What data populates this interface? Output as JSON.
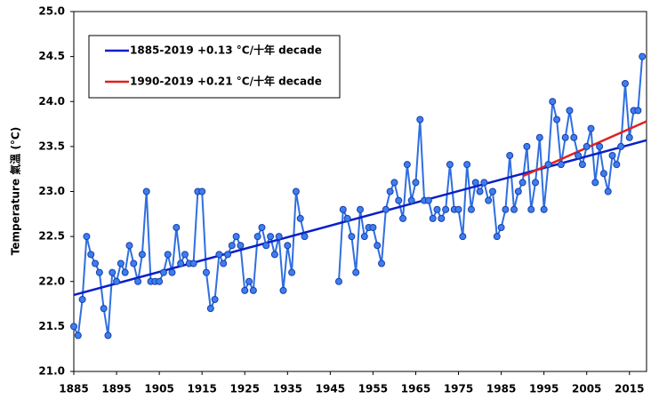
{
  "chart_data": {
    "type": "line",
    "y_label": "Temperature 氣溫 (°C)",
    "x": [
      1885,
      1886,
      1887,
      1888,
      1889,
      1890,
      1891,
      1892,
      1893,
      1894,
      1895,
      1896,
      1897,
      1898,
      1899,
      1900,
      1901,
      1902,
      1903,
      1904,
      1905,
      1906,
      1907,
      1908,
      1909,
      1910,
      1911,
      1912,
      1913,
      1914,
      1915,
      1916,
      1917,
      1918,
      1919,
      1920,
      1921,
      1922,
      1923,
      1924,
      1925,
      1926,
      1927,
      1928,
      1929,
      1930,
      1931,
      1932,
      1933,
      1934,
      1935,
      1936,
      1937,
      1938,
      1939,
      1940,
      1941,
      1942,
      1943,
      1944,
      1945,
      1946,
      1947,
      1948,
      1949,
      1950,
      1951,
      1952,
      1953,
      1954,
      1955,
      1956,
      1957,
      1958,
      1959,
      1960,
      1961,
      1962,
      1963,
      1964,
      1965,
      1966,
      1967,
      1968,
      1969,
      1970,
      1971,
      1972,
      1973,
      1974,
      1975,
      1976,
      1977,
      1978,
      1979,
      1980,
      1981,
      1982,
      1983,
      1984,
      1985,
      1986,
      1987,
      1988,
      1989,
      1990,
      1991,
      1992,
      1993,
      1994,
      1995,
      1996,
      1997,
      1998,
      1999,
      2000,
      2001,
      2002,
      2003,
      2004,
      2005,
      2006,
      2007,
      2008,
      2009,
      2010,
      2011,
      2012,
      2013,
      2014,
      2015,
      2016,
      2017,
      2018,
      2019
    ],
    "values": [
      21.5,
      21.4,
      21.8,
      22.5,
      22.3,
      22.2,
      22.1,
      21.7,
      21.4,
      22.1,
      22.0,
      22.2,
      22.1,
      22.4,
      22.2,
      22.0,
      22.3,
      23.0,
      22.0,
      22.0,
      22.0,
      22.1,
      22.3,
      22.1,
      22.6,
      22.2,
      22.3,
      22.2,
      22.2,
      23.0,
      23.0,
      22.1,
      21.7,
      21.8,
      22.3,
      22.2,
      22.3,
      22.4,
      22.5,
      22.4,
      21.9,
      22.0,
      21.9,
      22.5,
      22.6,
      22.4,
      22.5,
      22.3,
      22.5,
      21.9,
      22.4,
      22.1,
      23.0,
      22.7,
      22.5,
      null,
      null,
      null,
      null,
      null,
      null,
      null,
      22.0,
      22.8,
      22.7,
      22.5,
      22.1,
      22.8,
      22.5,
      22.6,
      22.6,
      22.4,
      22.2,
      22.8,
      23.0,
      23.1,
      22.9,
      22.7,
      23.3,
      22.9,
      23.1,
      23.8,
      22.9,
      22.9,
      22.7,
      22.8,
      22.7,
      22.8,
      23.3,
      22.8,
      22.8,
      22.5,
      23.3,
      22.8,
      23.1,
      23.0,
      23.1,
      22.9,
      23.0,
      22.5,
      22.6,
      22.8,
      23.4,
      22.8,
      23.0,
      23.1,
      23.5,
      22.8,
      23.1,
      23.6,
      22.8,
      23.3,
      24.0,
      23.8,
      23.3,
      23.6,
      23.9,
      23.6,
      23.4,
      23.3,
      23.5,
      23.7,
      23.1,
      23.5,
      23.2,
      23.0,
      23.4,
      23.3,
      23.5,
      24.2,
      23.6,
      23.9,
      23.9,
      24.5,
      null
    ],
    "color": "#2f6fe0",
    "trend_lines": [
      {
        "name": "1885-2019 +0.13 °C/十年 decade",
        "color": "#0a1fc8",
        "x": [
          1885,
          2019
        ],
        "values": [
          21.85,
          23.57
        ]
      },
      {
        "name": "1990-2019 +0.21 °C/十年 decade",
        "color": "#e02020",
        "x": [
          1990,
          2019
        ],
        "values": [
          23.17,
          23.78
        ]
      }
    ],
    "xlim": [
      1885,
      2019
    ],
    "ylim": [
      21,
      25
    ],
    "xticks": [
      1885,
      1895,
      1905,
      1915,
      1925,
      1935,
      1945,
      1955,
      1965,
      1975,
      1985,
      1995,
      2005,
      2015
    ],
    "yticks": [
      {
        "value": 21,
        "label": "21.0"
      },
      {
        "value": 21.5,
        "label": "21.5"
      },
      {
        "value": 22,
        "label": "22.0"
      },
      {
        "value": 22.5,
        "label": "22.5"
      },
      {
        "value": 23,
        "label": "23.0"
      },
      {
        "value": 23.5,
        "label": "23.5"
      },
      {
        "value": 24,
        "label": "24.0"
      },
      {
        "value": 24.5,
        "label": "24.5"
      },
      {
        "value": 25,
        "label": "25.0"
      }
    ]
  }
}
